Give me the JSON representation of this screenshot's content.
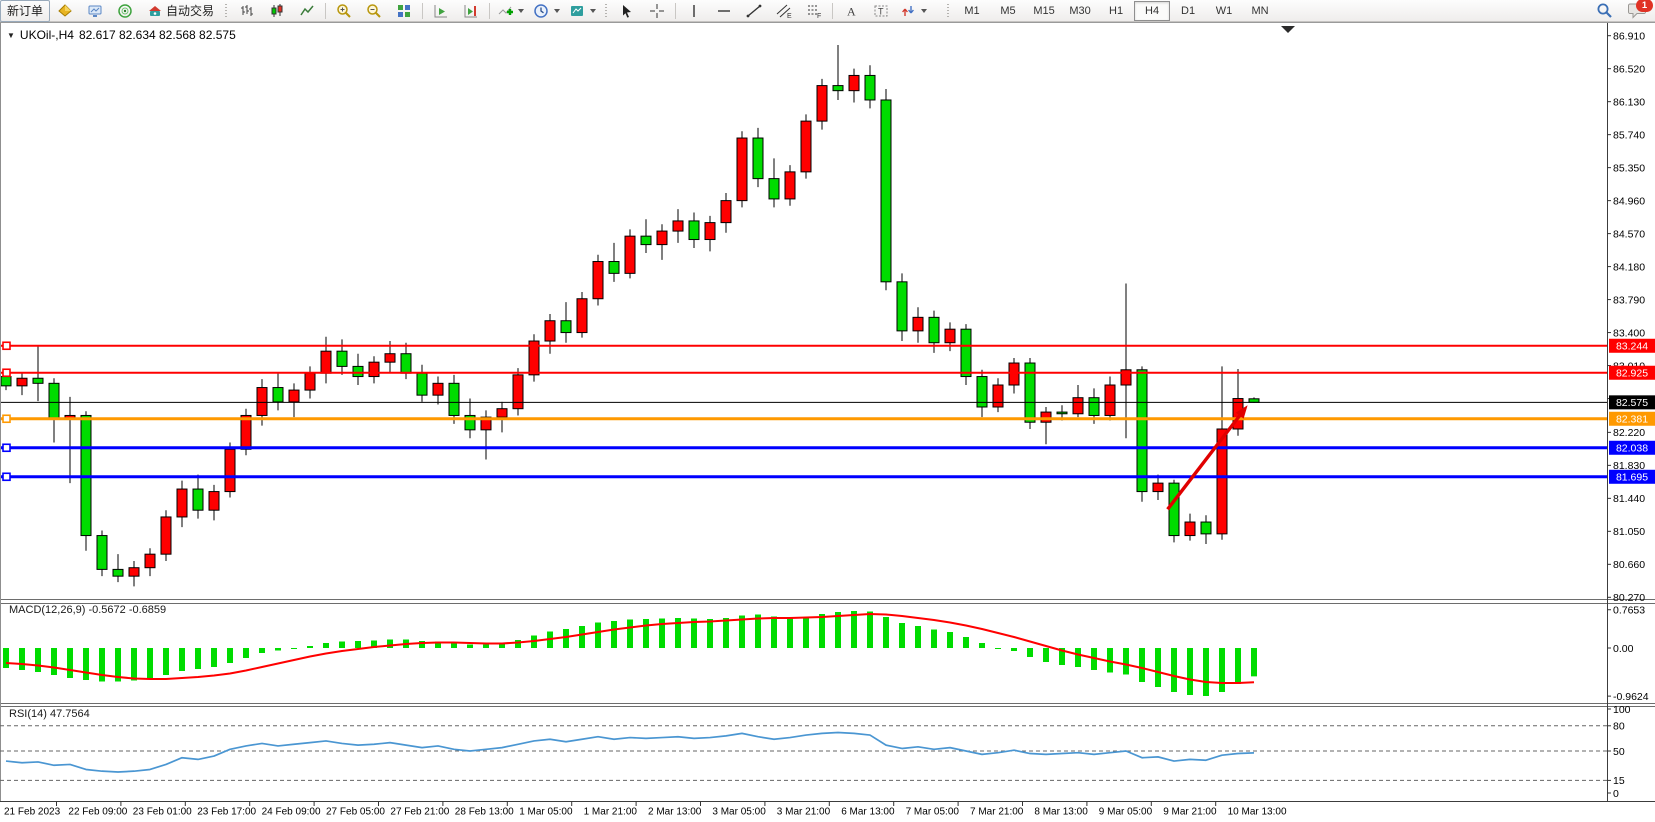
{
  "toolbar": {
    "new_order_label": "新订单",
    "autotrading_label": "自动交易",
    "timeframes": [
      "M1",
      "M5",
      "M15",
      "M30",
      "H1",
      "H4",
      "D1",
      "W1",
      "MN"
    ],
    "active_timeframe": "H4",
    "notification_badge": "1"
  },
  "icons": {
    "collapse_marker": "▼",
    "letter_e": "E",
    "letter_f": "F",
    "letter_a": "A",
    "letter_t": "T"
  },
  "chart": {
    "title_symbol": "UKOil-,H4",
    "title_quotes": "82.617 82.634 82.568 82.575",
    "open": "82.617",
    "high": "82.634",
    "low": "82.568",
    "close": "82.575",
    "macd_label": "MACD(12,26,9) -0.5672 -0.6859",
    "rsi_label": "RSI(14) 47.7564"
  },
  "chart_data": {
    "type": "candlestick",
    "symbol": "UKOil-",
    "timeframe": "H4",
    "title": "UKOil-,H4 82.617 82.634 82.568 82.575",
    "bull_color": "#FF0000",
    "bear_color": "#00DC00",
    "price_axis": {
      "ylim": [
        80.25,
        87.06
      ],
      "ticks": [
        86.91,
        86.52,
        86.13,
        85.74,
        85.35,
        84.96,
        84.57,
        84.18,
        83.79,
        83.4,
        83.01,
        82.62,
        82.22,
        81.83,
        81.44,
        81.05,
        80.66,
        80.27
      ]
    },
    "date_labels": [
      "21 Feb 2023",
      "22 Feb 09:00",
      "23 Feb 01:00",
      "23 Feb 17:00",
      "24 Feb 09:00",
      "27 Feb 05:00",
      "27 Feb 21:00",
      "28 Feb 13:00",
      "1 Mar 05:00",
      "1 Mar 21:00",
      "2 Mar 13:00",
      "3 Mar 05:00",
      "3 Mar 21:00",
      "6 Mar 13:00",
      "7 Mar 05:00",
      "7 Mar 21:00",
      "8 Mar 13:00",
      "9 Mar 05:00",
      "9 Mar 21:00",
      "10 Mar 13:00"
    ],
    "candles": [
      [
        82.88,
        82.94,
        82.72,
        82.77
      ],
      [
        82.77,
        82.92,
        82.66,
        82.86
      ],
      [
        82.86,
        83.24,
        82.59,
        82.8
      ],
      [
        82.8,
        82.86,
        82.1,
        82.38
      ],
      [
        82.38,
        82.64,
        81.62,
        82.42
      ],
      [
        82.42,
        82.47,
        80.82,
        81.0
      ],
      [
        81.0,
        81.06,
        80.52,
        80.6
      ],
      [
        80.6,
        80.78,
        80.45,
        80.52
      ],
      [
        80.52,
        80.7,
        80.4,
        80.62
      ],
      [
        80.62,
        80.85,
        80.52,
        80.78
      ],
      [
        80.78,
        81.3,
        80.7,
        81.22
      ],
      [
        81.22,
        81.65,
        81.1,
        81.55
      ],
      [
        81.55,
        81.72,
        81.2,
        81.3
      ],
      [
        81.3,
        81.6,
        81.18,
        81.52
      ],
      [
        81.52,
        82.1,
        81.45,
        82.02
      ],
      [
        82.02,
        82.5,
        81.95,
        82.42
      ],
      [
        82.42,
        82.85,
        82.3,
        82.75
      ],
      [
        82.75,
        82.92,
        82.48,
        82.58
      ],
      [
        82.58,
        82.8,
        82.4,
        82.72
      ],
      [
        82.72,
        83.0,
        82.62,
        82.92
      ],
      [
        82.92,
        83.35,
        82.8,
        83.18
      ],
      [
        83.18,
        83.32,
        82.9,
        83.0
      ],
      [
        83.0,
        83.15,
        82.78,
        82.88
      ],
      [
        82.88,
        83.12,
        82.8,
        83.05
      ],
      [
        83.05,
        83.3,
        82.92,
        83.15
      ],
      [
        83.15,
        83.28,
        82.85,
        82.92
      ],
      [
        82.92,
        83.02,
        82.58,
        82.66
      ],
      [
        82.66,
        82.88,
        82.55,
        82.8
      ],
      [
        82.8,
        82.9,
        82.32,
        82.42
      ],
      [
        82.42,
        82.62,
        82.15,
        82.25
      ],
      [
        82.25,
        82.48,
        81.9,
        82.4
      ],
      [
        82.4,
        82.58,
        82.22,
        82.5
      ],
      [
        82.5,
        82.98,
        82.42,
        82.9
      ],
      [
        82.9,
        83.38,
        82.82,
        83.3
      ],
      [
        83.3,
        83.62,
        83.15,
        83.54
      ],
      [
        83.54,
        83.76,
        83.28,
        83.4
      ],
      [
        83.4,
        83.88,
        83.34,
        83.8
      ],
      [
        83.8,
        84.32,
        83.72,
        84.24
      ],
      [
        84.24,
        84.46,
        84.0,
        84.1
      ],
      [
        84.1,
        84.62,
        84.04,
        84.54
      ],
      [
        84.54,
        84.74,
        84.34,
        84.44
      ],
      [
        84.44,
        84.68,
        84.26,
        84.6
      ],
      [
        84.6,
        84.86,
        84.46,
        84.72
      ],
      [
        84.72,
        84.82,
        84.4,
        84.5
      ],
      [
        84.5,
        84.78,
        84.36,
        84.7
      ],
      [
        84.7,
        85.05,
        84.58,
        84.96
      ],
      [
        84.96,
        85.78,
        84.88,
        85.7
      ],
      [
        85.7,
        85.82,
        85.12,
        85.22
      ],
      [
        85.22,
        85.46,
        84.88,
        84.98
      ],
      [
        84.98,
        85.38,
        84.9,
        85.3
      ],
      [
        85.3,
        85.98,
        85.22,
        85.9
      ],
      [
        85.9,
        86.4,
        85.8,
        86.32
      ],
      [
        86.32,
        86.8,
        86.15,
        86.26
      ],
      [
        86.26,
        86.52,
        86.12,
        86.44
      ],
      [
        86.44,
        86.56,
        86.05,
        86.15
      ],
      [
        86.15,
        86.28,
        83.9,
        84.0
      ],
      [
        84.0,
        84.1,
        83.3,
        83.42
      ],
      [
        83.42,
        83.7,
        83.28,
        83.58
      ],
      [
        83.58,
        83.66,
        83.16,
        83.28
      ],
      [
        83.28,
        83.52,
        83.18,
        83.44
      ],
      [
        83.44,
        83.5,
        82.78,
        82.88
      ],
      [
        82.88,
        82.96,
        82.4,
        82.52
      ],
      [
        82.52,
        82.86,
        82.46,
        82.78
      ],
      [
        82.78,
        83.1,
        82.68,
        83.04
      ],
      [
        83.04,
        83.1,
        82.26,
        82.34
      ],
      [
        82.34,
        82.52,
        82.08,
        82.46
      ],
      [
        82.46,
        82.54,
        82.36,
        82.44
      ],
      [
        82.44,
        82.78,
        82.4,
        82.63
      ],
      [
        82.63,
        82.74,
        82.32,
        82.42
      ],
      [
        82.42,
        82.88,
        82.36,
        82.78
      ],
      [
        82.78,
        83.98,
        82.15,
        82.96
      ],
      [
        82.96,
        83.0,
        81.4,
        81.52
      ],
      [
        81.52,
        81.72,
        81.42,
        81.62
      ],
      [
        81.62,
        81.66,
        80.92,
        81.0
      ],
      [
        81.0,
        81.26,
        80.94,
        81.16
      ],
      [
        81.16,
        81.24,
        80.9,
        81.02
      ],
      [
        81.02,
        83.0,
        80.95,
        82.26
      ],
      [
        82.26,
        82.97,
        82.18,
        82.62
      ],
      [
        82.617,
        82.634,
        82.568,
        82.575
      ]
    ],
    "levels": [
      {
        "price": 83.244,
        "label": "83.244",
        "color": "#FF0000",
        "width": 2,
        "type": "resistance"
      },
      {
        "price": 82.925,
        "label": "82.925",
        "color": "#FF0000",
        "width": 2,
        "type": "resistance"
      },
      {
        "price": 82.575,
        "label": "82.575",
        "color": "#000000",
        "width": 1,
        "type": "current-price"
      },
      {
        "price": 82.381,
        "label": "82.381",
        "color": "#FF9900",
        "width": 3,
        "type": "pivot"
      },
      {
        "price": 82.038,
        "label": "82.038",
        "color": "#0000FF",
        "width": 3,
        "type": "support"
      },
      {
        "price": 81.695,
        "label": "81.695",
        "color": "#0000FF",
        "width": 3,
        "type": "support"
      }
    ],
    "arrow": {
      "from_index": 72.6,
      "from_price": 81.31,
      "to_index": 77.6,
      "to_price": 82.54,
      "color": "#E00000"
    },
    "macd": {
      "label": "MACD(12,26,9)",
      "values_text": "-0.5672 -0.6859",
      "histogram_color": "#00DC00",
      "signal_color": "#FF0000",
      "axis_ticks": [
        {
          "v": 0.7653,
          "label": "0.7653"
        },
        {
          "v": 0,
          "label": "0.00"
        },
        {
          "v": -0.9624,
          "label": "-0.9624"
        }
      ],
      "histogram": [
        -0.4,
        -0.44,
        -0.48,
        -0.54,
        -0.6,
        -0.64,
        -0.67,
        -0.67,
        -0.65,
        -0.6,
        -0.54,
        -0.46,
        -0.42,
        -0.38,
        -0.3,
        -0.2,
        -0.1,
        -0.05,
        -0.01,
        0.04,
        0.1,
        0.13,
        0.14,
        0.15,
        0.17,
        0.17,
        0.14,
        0.13,
        0.1,
        0.07,
        0.07,
        0.1,
        0.16,
        0.25,
        0.33,
        0.38,
        0.44,
        0.51,
        0.54,
        0.57,
        0.58,
        0.59,
        0.6,
        0.59,
        0.58,
        0.6,
        0.65,
        0.67,
        0.63,
        0.6,
        0.62,
        0.68,
        0.72,
        0.74,
        0.73,
        0.62,
        0.5,
        0.44,
        0.37,
        0.32,
        0.22,
        0.1,
        0.0,
        -0.06,
        -0.18,
        -0.28,
        -0.34,
        -0.38,
        -0.44,
        -0.49,
        -0.53,
        -0.68,
        -0.78,
        -0.88,
        -0.94,
        -0.96,
        -0.88,
        -0.72,
        -0.5672
      ],
      "signal": [
        -0.3,
        -0.32,
        -0.35,
        -0.39,
        -0.44,
        -0.49,
        -0.54,
        -0.58,
        -0.61,
        -0.62,
        -0.62,
        -0.6,
        -0.58,
        -0.55,
        -0.51,
        -0.45,
        -0.38,
        -0.31,
        -0.24,
        -0.17,
        -0.11,
        -0.06,
        -0.02,
        0.02,
        0.05,
        0.08,
        0.1,
        0.11,
        0.11,
        0.1,
        0.09,
        0.09,
        0.11,
        0.14,
        0.18,
        0.22,
        0.27,
        0.32,
        0.37,
        0.41,
        0.45,
        0.48,
        0.5,
        0.52,
        0.53,
        0.55,
        0.57,
        0.59,
        0.6,
        0.6,
        0.61,
        0.62,
        0.64,
        0.66,
        0.68,
        0.67,
        0.64,
        0.6,
        0.56,
        0.51,
        0.45,
        0.38,
        0.3,
        0.22,
        0.13,
        0.04,
        -0.05,
        -0.13,
        -0.2,
        -0.27,
        -0.33,
        -0.4,
        -0.48,
        -0.56,
        -0.63,
        -0.68,
        -0.7,
        -0.7,
        -0.6859
      ]
    },
    "rsi": {
      "label": "RSI(14)",
      "value": 47.7564,
      "color": "#4A96D2",
      "axis_ticks": [
        {
          "v": 100,
          "label": "100"
        },
        {
          "v": 80,
          "label": "80",
          "dashed": true
        },
        {
          "v": 50,
          "label": "50",
          "dashed": true
        },
        {
          "v": 15,
          "label": "15",
          "dashed": true
        },
        {
          "v": 0,
          "label": "0"
        }
      ],
      "values": [
        38,
        36,
        37,
        33,
        34,
        28,
        26,
        25,
        26,
        28,
        34,
        42,
        40,
        44,
        52,
        56,
        59,
        56,
        58,
        60,
        62,
        59,
        57,
        58,
        60,
        57,
        54,
        56,
        52,
        50,
        52,
        54,
        58,
        62,
        64,
        61,
        64,
        67,
        64,
        66,
        65,
        66,
        67,
        65,
        66,
        68,
        71,
        67,
        64,
        66,
        69,
        71,
        72,
        71,
        69,
        57,
        53,
        55,
        52,
        54,
        50,
        46,
        48,
        51,
        47,
        46,
        47,
        48,
        46,
        48,
        50,
        42,
        43,
        38,
        40,
        39,
        45,
        47,
        47.7564
      ]
    }
  }
}
